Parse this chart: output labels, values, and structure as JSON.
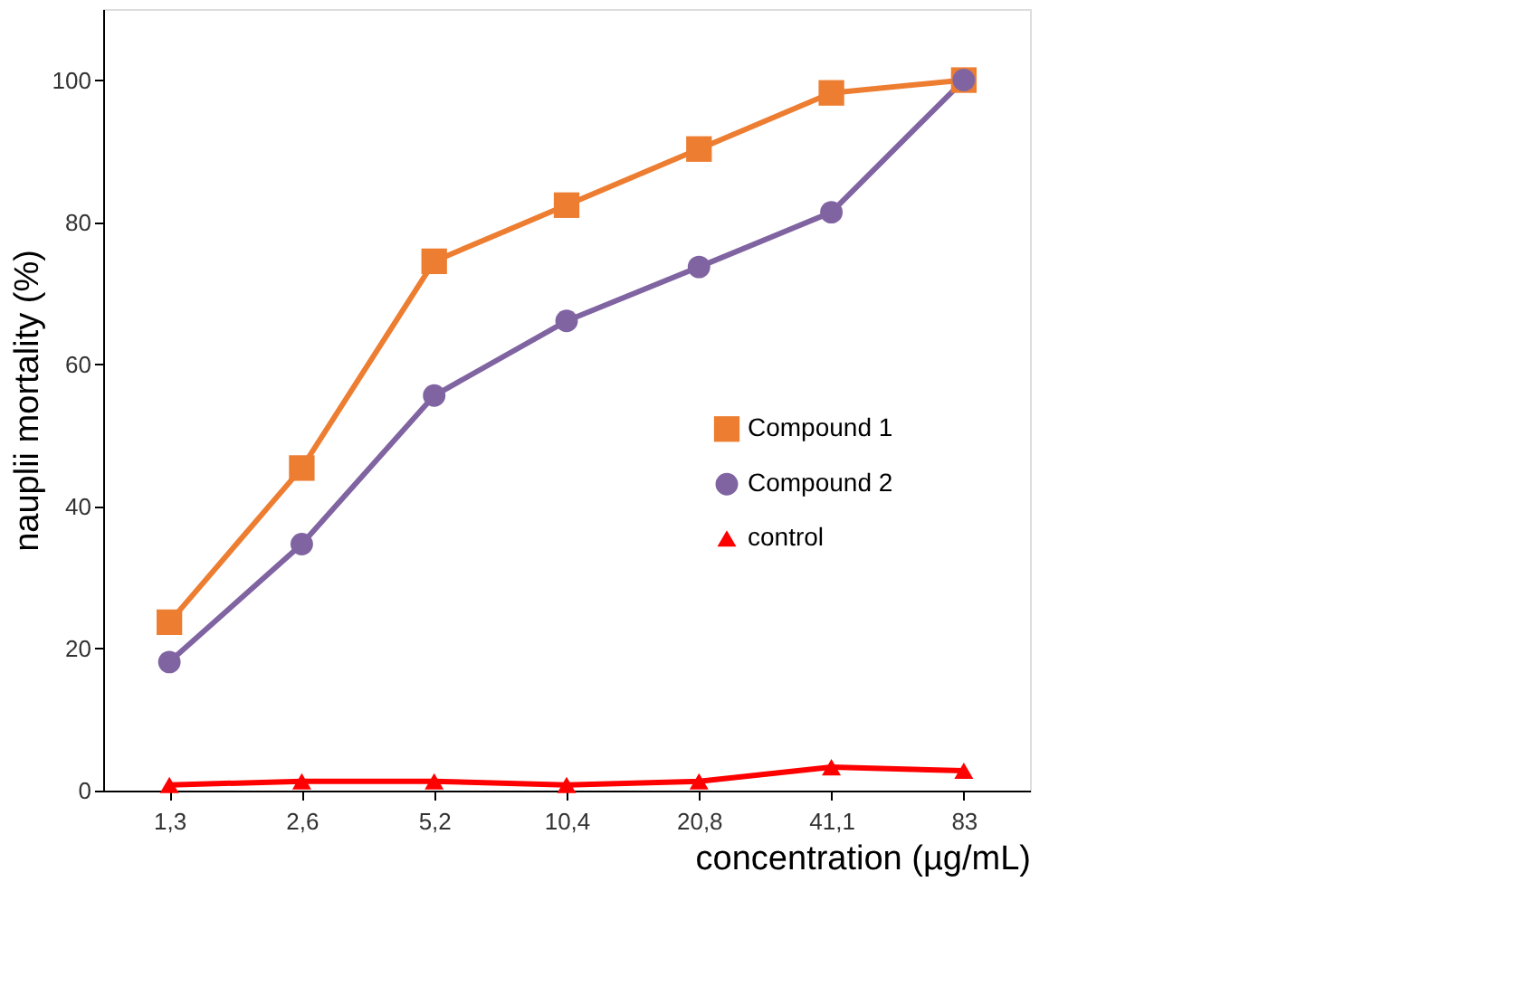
{
  "chart_data": {
    "type": "line",
    "xlabel": "concentration (µg/mL)",
    "ylabel": "nauplii mortality (%)",
    "categories": [
      "1,3",
      "2,6",
      "5,2",
      "10,4",
      "20,8",
      "41,1",
      "83"
    ],
    "series": [
      {
        "name": "Compound 1",
        "color": "#ed7d31",
        "marker": "square",
        "values": [
          23.7,
          45.4,
          74.5,
          82.4,
          90.3,
          98.2,
          100
        ]
      },
      {
        "name": "Compound 2",
        "color": "#8064a2",
        "marker": "circle",
        "values": [
          18.1,
          34.7,
          55.6,
          66.1,
          73.7,
          81.4,
          100
        ]
      },
      {
        "name": "control",
        "color": "#ff0000",
        "marker": "triangle",
        "values": [
          0.8,
          1.3,
          1.3,
          0.8,
          1.3,
          3.3,
          2.8
        ]
      }
    ],
    "ylim": [
      0,
      110
    ],
    "yticks": [
      0,
      20,
      40,
      60,
      80,
      100
    ],
    "grid": false,
    "legend": "right",
    "line_style": "solid"
  }
}
